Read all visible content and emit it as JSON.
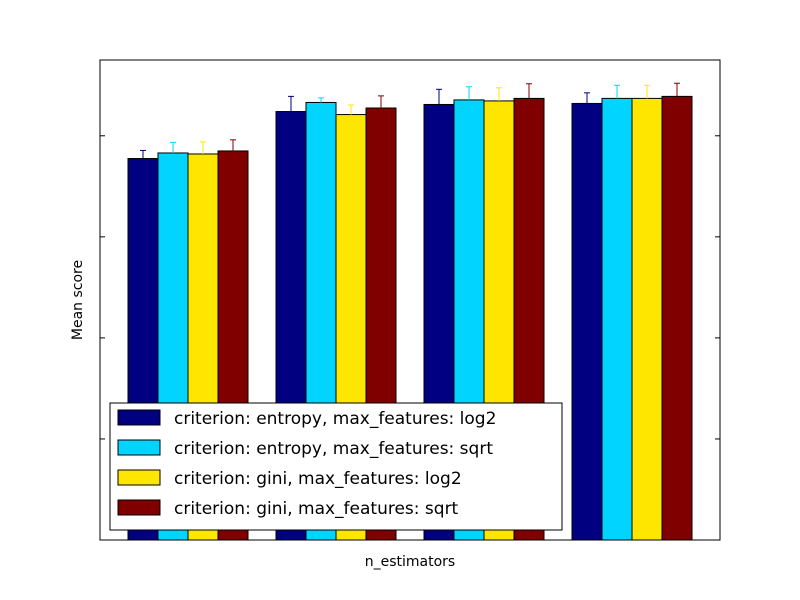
{
  "chart_data": {
    "type": "bar",
    "xlabel": "n_estimators",
    "ylabel": "Mean score",
    "categories": [
      "",
      "",
      "",
      ""
    ],
    "ylim": [
      0,
      0.95
    ],
    "y_ticks": [
      0.2,
      0.4,
      0.6,
      0.8
    ],
    "grid": false,
    "legend_position": "bottom-left",
    "series": [
      {
        "name": "criterion: entropy, max_features: log2",
        "color": "#000080",
        "values": [
          0.755,
          0.848,
          0.862,
          0.864
        ],
        "errors": [
          0.016,
          0.03,
          0.03,
          0.021
        ]
      },
      {
        "name": "criterion: entropy, max_features: sqrt",
        "color": "#00d4ff",
        "values": [
          0.766,
          0.866,
          0.871,
          0.874
        ],
        "errors": [
          0.021,
          0.009,
          0.026,
          0.026
        ]
      },
      {
        "name": "criterion: gini, max_features: log2",
        "color": "#ffe600",
        "values": [
          0.764,
          0.842,
          0.869,
          0.874
        ],
        "errors": [
          0.024,
          0.019,
          0.026,
          0.026
        ]
      },
      {
        "name": "criterion: gini, max_features: sqrt",
        "color": "#800000",
        "values": [
          0.77,
          0.855,
          0.874,
          0.878
        ],
        "errors": [
          0.022,
          0.024,
          0.029,
          0.026
        ]
      }
    ]
  }
}
